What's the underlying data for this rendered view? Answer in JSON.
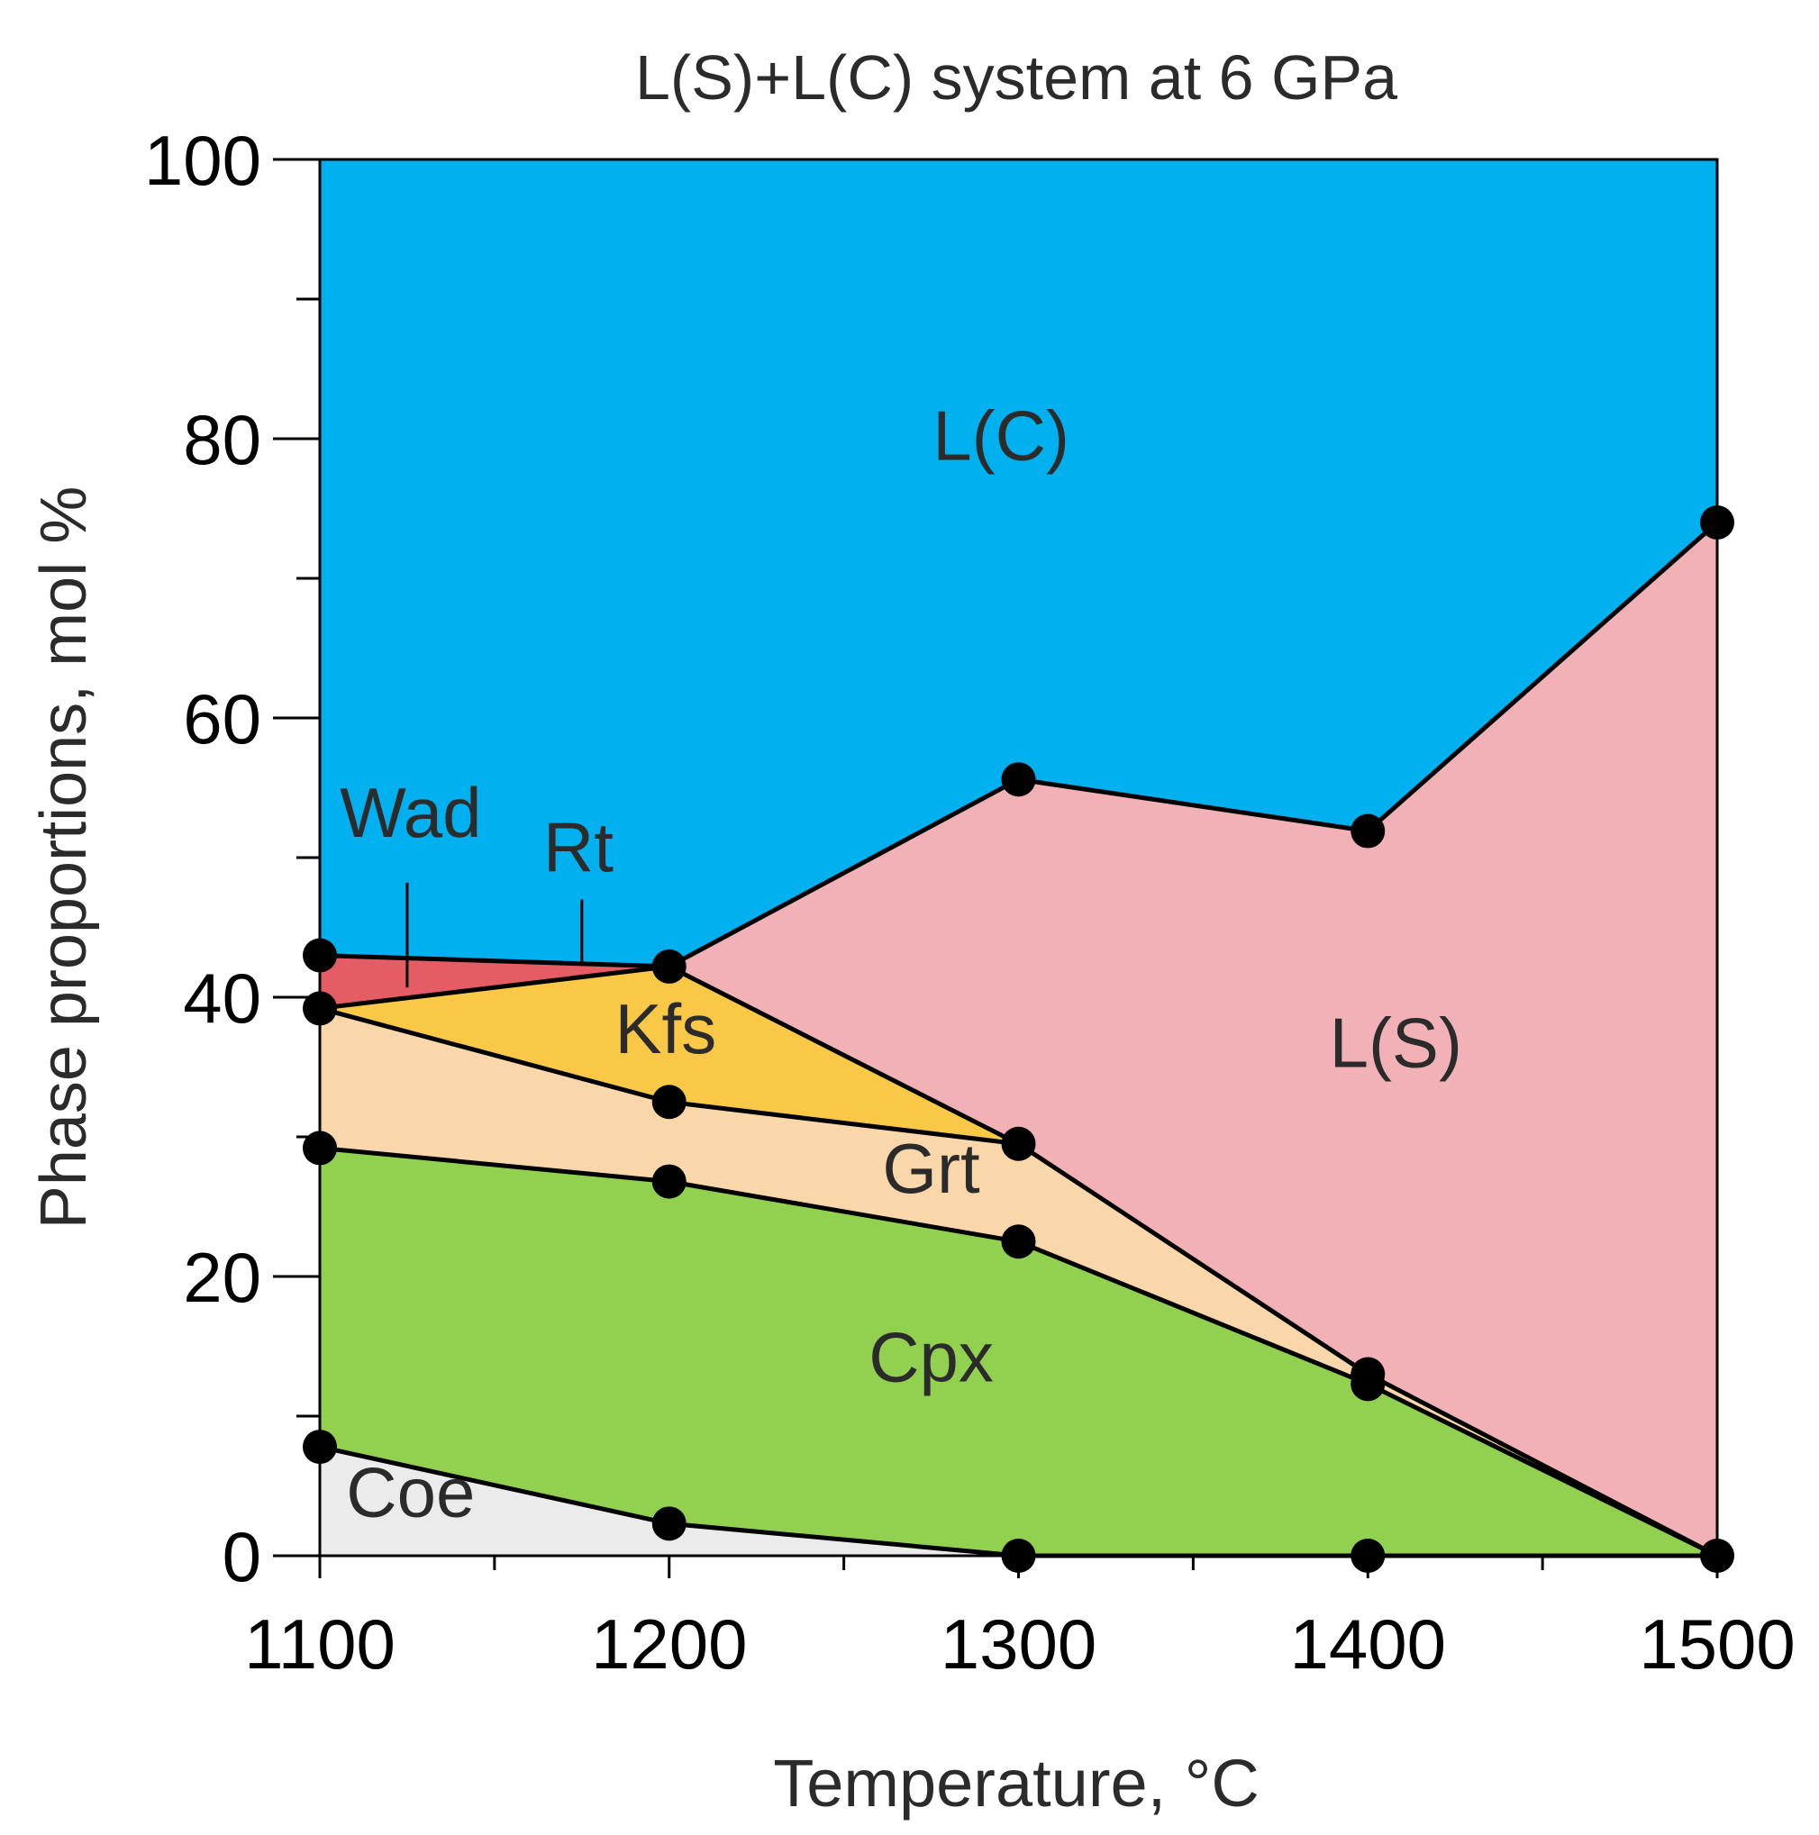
{
  "chart_data": {
    "type": "area",
    "stacked": true,
    "title": "L(S)+L(C) system at 6 GPa",
    "xlabel": "Temperature, °C",
    "ylabel": "Phase proportions, mol %",
    "xlim": [
      1100,
      1500
    ],
    "ylim": [
      0,
      100
    ],
    "x_ticks": [
      "1100",
      "1200",
      "1300",
      "1400",
      "1500"
    ],
    "y_ticks": [
      "0",
      "20",
      "40",
      "60",
      "80",
      "100"
    ],
    "x_minor_step": 50,
    "y_minor_step": 10,
    "grid": false,
    "boundaries": [
      {
        "name": "Coe/Cpx",
        "points": [
          [
            1100,
            7.8
          ],
          [
            1200,
            2.3
          ],
          [
            1300,
            0
          ],
          [
            1400,
            0
          ],
          [
            1500,
            0
          ]
        ]
      },
      {
        "name": "Cpx/Grt",
        "points": [
          [
            1100,
            29.2
          ],
          [
            1200,
            26.8
          ],
          [
            1300,
            22.5
          ],
          [
            1400,
            12.3
          ],
          [
            1500,
            0
          ]
        ]
      },
      {
        "name": "Grt/Kfs",
        "points": [
          [
            1100,
            39.2
          ],
          [
            1200,
            32.5
          ],
          [
            1300,
            29.5
          ]
        ]
      },
      {
        "name": "Kfs/Wad",
        "points": [
          [
            1100,
            39.2
          ],
          [
            1200,
            42.2
          ]
        ]
      },
      {
        "name": "Kfs-Grt/L(S)",
        "points": [
          [
            1200,
            42.2
          ],
          [
            1300,
            29.5
          ],
          [
            1400,
            13.0
          ],
          [
            1500,
            0
          ]
        ]
      },
      {
        "name": "Wad/Rt",
        "points": [
          [
            1100,
            43.0
          ],
          [
            1200,
            42.2
          ]
        ]
      },
      {
        "name": "L(S)/L(C)",
        "points": [
          [
            1200,
            42.2
          ],
          [
            1300,
            55.6
          ],
          [
            1400,
            51.9
          ],
          [
            1500,
            74.0
          ]
        ]
      }
    ],
    "regions": [
      {
        "name": "Coe",
        "label": "Coe",
        "color": "#ebebeb",
        "polygon": [
          [
            1100,
            0
          ],
          [
            1500,
            0
          ],
          [
            1400,
            0
          ],
          [
            1300,
            0
          ],
          [
            1200,
            2.3
          ],
          [
            1100,
            7.8
          ]
        ]
      },
      {
        "name": "Cpx",
        "label": "Cpx",
        "color": "#92d050",
        "polygon": [
          [
            1100,
            7.8
          ],
          [
            1200,
            2.3
          ],
          [
            1300,
            0
          ],
          [
            1500,
            0
          ],
          [
            1400,
            12.3
          ],
          [
            1300,
            22.5
          ],
          [
            1200,
            26.8
          ],
          [
            1100,
            29.2
          ]
        ]
      },
      {
        "name": "Grt",
        "label": "Grt",
        "color": "#fad7aa",
        "polygon": [
          [
            1100,
            29.2
          ],
          [
            1200,
            26.8
          ],
          [
            1300,
            22.5
          ],
          [
            1400,
            12.3
          ],
          [
            1500,
            0
          ],
          [
            1400,
            13.0
          ],
          [
            1300,
            29.5
          ],
          [
            1200,
            32.5
          ],
          [
            1100,
            39.2
          ]
        ]
      },
      {
        "name": "Kfs",
        "label": "Kfs",
        "color": "#f8c846",
        "polygon": [
          [
            1100,
            39.2
          ],
          [
            1200,
            32.5
          ],
          [
            1300,
            29.5
          ],
          [
            1200,
            42.2
          ]
        ]
      },
      {
        "name": "Wad",
        "label": "Wad",
        "color": "#e45c64",
        "polygon": [
          [
            1100,
            39.2
          ],
          [
            1200,
            42.2
          ],
          [
            1100,
            43.0
          ]
        ]
      },
      {
        "name": "L(S)",
        "label": "L(S)",
        "color": "#f2b1b7",
        "polygon": [
          [
            1200,
            42.2
          ],
          [
            1300,
            29.5
          ],
          [
            1400,
            13.0
          ],
          [
            1500,
            0
          ],
          [
            1500,
            74.0
          ],
          [
            1400,
            51.9
          ],
          [
            1300,
            55.6
          ]
        ]
      },
      {
        "name": "L(C)",
        "label": "L(C)",
        "color": "#00b0ef",
        "polygon": [
          [
            1100,
            43.0
          ],
          [
            1200,
            42.2
          ],
          [
            1300,
            55.6
          ],
          [
            1400,
            51.9
          ],
          [
            1500,
            74.0
          ],
          [
            1500,
            100
          ],
          [
            1100,
            100
          ]
        ]
      }
    ],
    "points": [
      [
        1100,
        7.8
      ],
      [
        1100,
        29.2
      ],
      [
        1100,
        39.2
      ],
      [
        1100,
        43.0
      ],
      [
        1200,
        2.3
      ],
      [
        1200,
        26.8
      ],
      [
        1200,
        32.5
      ],
      [
        1200,
        42.2
      ],
      [
        1300,
        0
      ],
      [
        1300,
        22.5
      ],
      [
        1300,
        29.5
      ],
      [
        1300,
        55.6
      ],
      [
        1400,
        0
      ],
      [
        1400,
        12.3
      ],
      [
        1400,
        13.0
      ],
      [
        1400,
        51.9
      ],
      [
        1500,
        0
      ],
      [
        1500,
        74.0
      ]
    ],
    "annotations": [
      {
        "name": "L(C)",
        "text": "L(C)",
        "at": [
          1295,
          78.5
        ]
      },
      {
        "name": "L(S)",
        "text": "L(S)",
        "at": [
          1408,
          35.0
        ]
      },
      {
        "name": "Kfs",
        "text": "Kfs",
        "at": [
          1199,
          36.0
        ]
      },
      {
        "name": "Grt",
        "text": "Grt",
        "at": [
          1275,
          26.0
        ]
      },
      {
        "name": "Cpx",
        "text": "Cpx",
        "at": [
          1275,
          12.5
        ]
      },
      {
        "name": "Coe",
        "text": "Coe",
        "at": [
          1126,
          2.8
        ]
      },
      {
        "name": "Wad",
        "text": "Wad",
        "at": [
          1126,
          51.5
        ]
      },
      {
        "name": "Rt",
        "text": "Rt",
        "at": [
          1174,
          49.0
        ]
      }
    ],
    "leaders": [
      {
        "name": "Wad",
        "from": [
          1125,
          48.2
        ],
        "to": [
          1125,
          40.7
        ]
      },
      {
        "name": "Rt",
        "from": [
          1175,
          47.0
        ],
        "to": [
          1175,
          42.5
        ]
      }
    ]
  }
}
